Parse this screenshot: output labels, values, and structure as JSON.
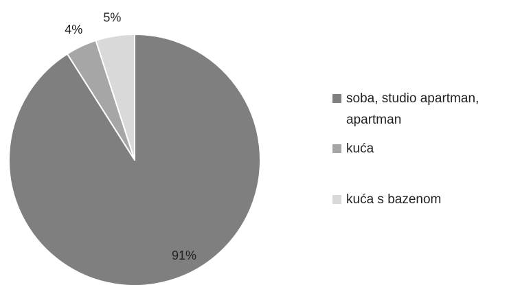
{
  "chart_data": {
    "type": "pie",
    "title": "",
    "series": [
      {
        "values": [
          91,
          4,
          5
        ]
      }
    ],
    "categories": [
      "soba, studio apartman, apartman",
      "kuća",
      "kuća s bazenom"
    ],
    "legend_lines": [
      [
        "soba, studio apartman,",
        "apartman"
      ],
      [
        "kuća"
      ],
      [
        "kuća s bazenom"
      ]
    ],
    "data_labels": [
      "91%",
      "4%",
      "5%"
    ],
    "colors": [
      "#7f7f7f",
      "#a6a6a6",
      "#d9d9d9"
    ],
    "legend_position": "right",
    "start_angle": "top",
    "direction": "clockwise"
  }
}
